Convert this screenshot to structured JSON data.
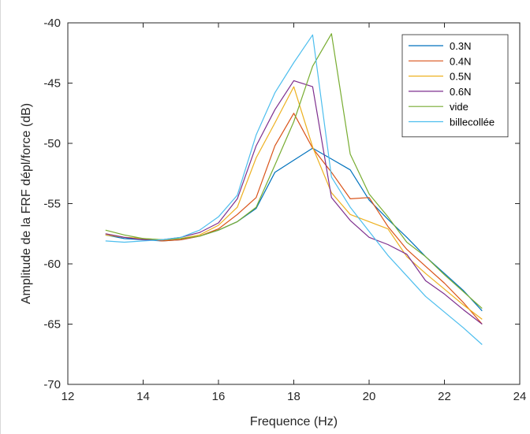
{
  "chart_data": {
    "type": "line",
    "xlabel": "Frequence (Hz)",
    "ylabel": "Amplitude de la FRF dépl/force (dB)",
    "xlim": [
      12,
      24
    ],
    "ylim": [
      -70,
      -40
    ],
    "xticks": [
      12,
      14,
      16,
      18,
      20,
      22,
      24
    ],
    "yticks": [
      -70,
      -65,
      -60,
      -55,
      -50,
      -45,
      -40
    ],
    "grid": false,
    "legend_position": "top-right",
    "series": [
      {
        "name": "0.3N",
        "color": "#0072BD",
        "x": [
          13,
          13.5,
          14,
          14.5,
          15,
          15.5,
          16,
          16.5,
          17,
          17.5,
          18,
          18.5,
          19,
          19.5,
          20,
          20.5,
          21,
          21.5,
          22,
          22.5,
          23
        ],
        "y": [
          -57.6,
          -57.9,
          -58.0,
          -58.1,
          -58.0,
          -57.7,
          -57.2,
          -56.5,
          -55.4,
          -52.4,
          -51.4,
          -50.4,
          -51.3,
          -52.2,
          -54.7,
          -56.3,
          -57.8,
          -59.4,
          -60.8,
          -62.2,
          -63.9
        ]
      },
      {
        "name": "0.4N",
        "color": "#D95319",
        "x": [
          13,
          13.5,
          14,
          14.5,
          15,
          15.5,
          16,
          16.5,
          17,
          17.5,
          18,
          18.5,
          19,
          19.5,
          20,
          20.5,
          21,
          21.5,
          22,
          22.5,
          23
        ],
        "y": [
          -57.5,
          -57.8,
          -57.9,
          -58.1,
          -58.0,
          -57.7,
          -57.1,
          -55.9,
          -54.5,
          -50.2,
          -47.5,
          -50.4,
          -52.4,
          -54.6,
          -54.5,
          -56.9,
          -58.8,
          -60.2,
          -61.6,
          -63.2,
          -65.0
        ]
      },
      {
        "name": "0.5N",
        "color": "#EDB120",
        "x": [
          13,
          13.5,
          14,
          14.5,
          15,
          15.5,
          16,
          16.5,
          17,
          17.5,
          18,
          18.5,
          19,
          19.5,
          20,
          20.5,
          21,
          21.5,
          22,
          22.5,
          23
        ],
        "y": [
          -57.6,
          -57.8,
          -57.9,
          -58.0,
          -57.9,
          -57.6,
          -56.8,
          -55.3,
          -51.2,
          -48.3,
          -45.3,
          -50.3,
          -54.1,
          -55.9,
          -56.5,
          -57.1,
          -59.4,
          -60.8,
          -62.1,
          -63.4,
          -64.6
        ]
      },
      {
        "name": "0.6N",
        "color": "#7E2F8E",
        "x": [
          13,
          13.5,
          14,
          14.5,
          15,
          15.5,
          16,
          16.5,
          17,
          17.5,
          18,
          18.5,
          19,
          19.5,
          20,
          20.5,
          21,
          21.5,
          22,
          22.5,
          23
        ],
        "y": [
          -57.5,
          -57.8,
          -58.0,
          -58.0,
          -57.8,
          -57.4,
          -56.6,
          -54.6,
          -50.2,
          -47.2,
          -44.8,
          -45.3,
          -54.5,
          -56.4,
          -57.8,
          -58.4,
          -59.2,
          -61.4,
          -62.5,
          -63.8,
          -65.0
        ]
      },
      {
        "name": "vide",
        "color": "#77AC30",
        "x": [
          13,
          13.5,
          14,
          14.5,
          15,
          15.5,
          16,
          16.5,
          17,
          17.5,
          18,
          18.5,
          19,
          19.5,
          20,
          20.5,
          21,
          21.5,
          22,
          22.5,
          23
        ],
        "y": [
          -57.2,
          -57.6,
          -57.9,
          -58.0,
          -57.9,
          -57.7,
          -57.2,
          -56.5,
          -55.3,
          -51.8,
          -48.2,
          -43.6,
          -40.9,
          -50.9,
          -54.2,
          -56.1,
          -58.2,
          -59.4,
          -60.9,
          -62.3,
          -63.7
        ]
      },
      {
        "name": "billecollée",
        "color": "#4DBEEE",
        "x": [
          13,
          13.5,
          14,
          14.5,
          15,
          15.5,
          16,
          16.5,
          17,
          17.5,
          18,
          18.5,
          19,
          19.5,
          20,
          20.5,
          21,
          21.5,
          22,
          22.5,
          23
        ],
        "y": [
          -58.1,
          -58.2,
          -58.1,
          -58.0,
          -57.8,
          -57.2,
          -56.1,
          -54.3,
          -49.3,
          -45.8,
          -43.3,
          -41.0,
          -52.8,
          -55.3,
          -57.3,
          -59.3,
          -61.0,
          -62.7,
          -64.0,
          -65.3,
          -66.7
        ]
      }
    ]
  }
}
